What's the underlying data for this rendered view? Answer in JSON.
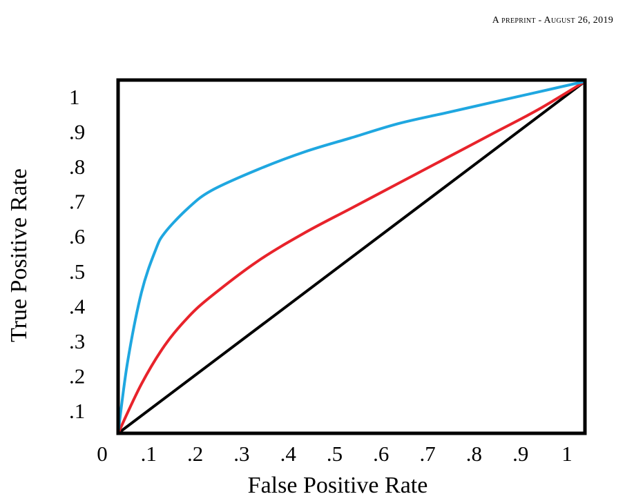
{
  "header": {
    "text": "A preprint - August 26, 2019"
  },
  "chart_data": {
    "type": "line",
    "xlabel": "False Positive Rate",
    "ylabel": "True Positive Rate",
    "xlim": [
      0,
      1
    ],
    "ylim": [
      0,
      1
    ],
    "grid": false,
    "x_ticks": [
      "0",
      ".1",
      ".2",
      ".3",
      ".4",
      ".5",
      ".6",
      ".7",
      ".8",
      ".9",
      "1"
    ],
    "y_ticks": [
      ".1",
      ".2",
      ".3",
      ".4",
      ".5",
      ".6",
      ".7",
      ".8",
      ".9",
      "1"
    ],
    "series": [
      {
        "color": "#1fa7e0",
        "x": [
          0,
          0.02,
          0.05,
          0.08,
          0.1,
          0.15,
          0.2,
          0.3,
          0.4,
          0.5,
          0.6,
          0.7,
          0.8,
          0.9,
          1.0
        ],
        "y": [
          0,
          0.2,
          0.4,
          0.52,
          0.57,
          0.64,
          0.69,
          0.75,
          0.8,
          0.84,
          0.88,
          0.91,
          0.94,
          0.97,
          1.0
        ]
      },
      {
        "color": "#e8232b",
        "x": [
          0,
          0.05,
          0.1,
          0.15,
          0.2,
          0.3,
          0.4,
          0.5,
          0.6,
          0.7,
          0.8,
          0.9,
          1.0
        ],
        "y": [
          0,
          0.14,
          0.25,
          0.33,
          0.39,
          0.49,
          0.57,
          0.64,
          0.71,
          0.78,
          0.85,
          0.92,
          1.0
        ]
      },
      {
        "color": "#000000",
        "x": [
          0,
          1
        ],
        "y": [
          0,
          1
        ]
      }
    ]
  }
}
